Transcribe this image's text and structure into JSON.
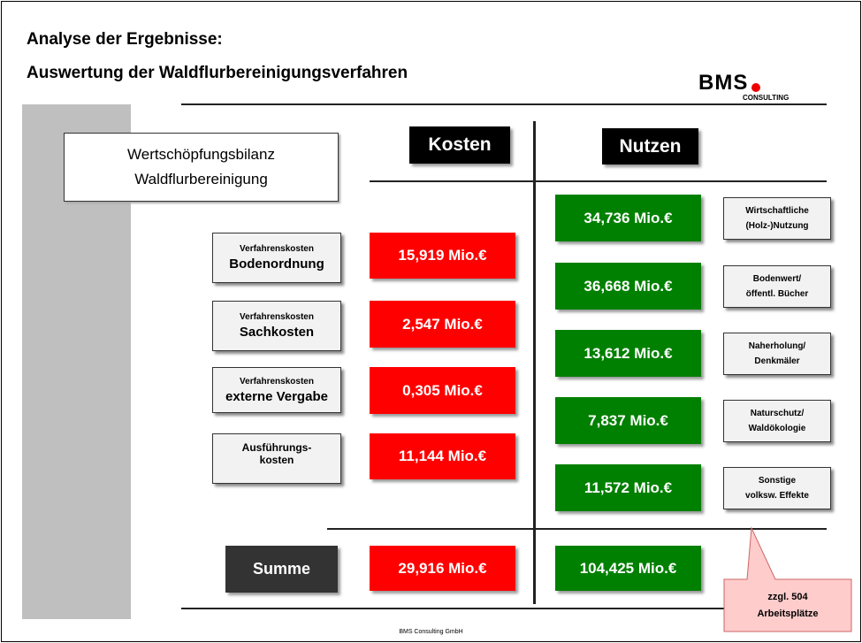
{
  "header": {
    "title_line1": "Analyse der Ergebnisse:",
    "title_line2": "Auswertung der Waldflurbereinigungsverfahren"
  },
  "logo": {
    "name": "BMS",
    "sub": "CONSULTING"
  },
  "box": {
    "line1": "Wertschöpfungsbilanz",
    "line2": "Waldflurbereinigung"
  },
  "columns": {
    "costs": "Kosten",
    "benefits": "Nutzen"
  },
  "costs": [
    {
      "small": "Verfahrenskosten",
      "label": "Bodenordnung",
      "value": "15,919 Mio.€"
    },
    {
      "small": "Verfahrenskosten",
      "label": "Sachkosten",
      "value": "2,547 Mio.€"
    },
    {
      "small": "Verfahrenskosten",
      "label": "externe Vergabe",
      "value": "0,305 Mio.€"
    },
    {
      "line1": "Ausführungs-",
      "line2": "kosten",
      "value": "11,144 Mio.€"
    }
  ],
  "benefits": [
    {
      "value": "34,736 Mio.€",
      "line1": "Wirtschaftliche",
      "line2": "(Holz-)Nutzung"
    },
    {
      "value": "36,668 Mio.€",
      "line1": "Bodenwert/",
      "line2": "öffentl.  Bücher"
    },
    {
      "value": "13,612 Mio.€",
      "line1": "Naherholung/",
      "line2": "Denkmäler"
    },
    {
      "value": "7,837 Mio.€",
      "line1": "Naturschutz/",
      "line2": "Waldökologie"
    },
    {
      "value": "11,572 Mio.€",
      "line1": "Sonstige",
      "line2": "volksw. Effekte"
    }
  ],
  "sum": {
    "label": "Summe",
    "costs": "29,916 Mio.€",
    "benefits": "104,425 Mio.€"
  },
  "callout": {
    "line1": "zzgl. 504",
    "line2": "Arbeitsplätze"
  },
  "footer": "BMS Consulting GmbH"
}
